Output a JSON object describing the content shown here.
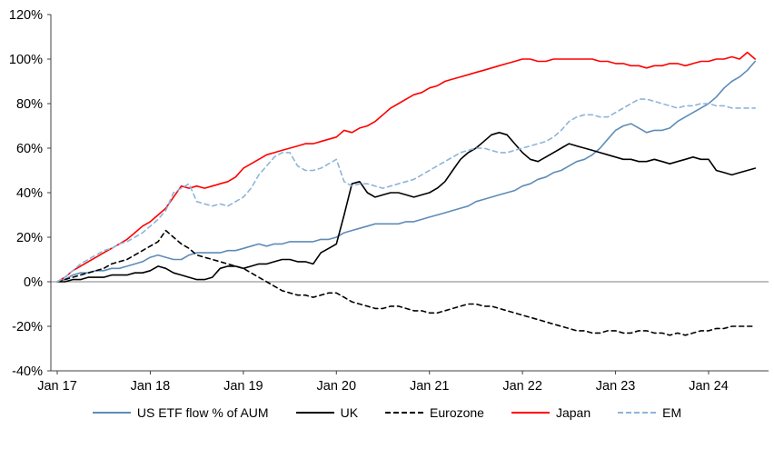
{
  "chart_data": {
    "type": "line",
    "title": "",
    "x_axis": {
      "tick_labels": [
        "Jan 17",
        "Jan 18",
        "Jan 19",
        "Jan 20",
        "Jan 21",
        "Jan 22",
        "Jan 23",
        "Jan 24"
      ],
      "tick_positions_months": [
        0,
        12,
        24,
        36,
        48,
        60,
        72,
        84
      ],
      "start": "Jan 2017",
      "resolution": "monthly"
    },
    "y_axis": {
      "tick_labels": [
        "120%",
        "100%",
        "80%",
        "60%",
        "40%",
        "20%",
        "0%",
        "-20%",
        "-40%"
      ],
      "tick_values": [
        120,
        100,
        80,
        60,
        40,
        20,
        0,
        -20,
        -40
      ],
      "range": [
        -40,
        120
      ],
      "unit": "%"
    },
    "grid": "zero-line-only",
    "legend_position": "bottom",
    "axis_color": "#404040",
    "zero_line_color": "#808080",
    "series": [
      {
        "name": "US ETF flow % of AUM",
        "color": "#5E8CB8",
        "style": "solid",
        "values": [
          0,
          1,
          3,
          4,
          4,
          5,
          5,
          6,
          6,
          7,
          8,
          9,
          11,
          12,
          11,
          10,
          10,
          12,
          13,
          13,
          13,
          13,
          14,
          14,
          15,
          16,
          17,
          16,
          17,
          17,
          18,
          18,
          18,
          18,
          19,
          19,
          20,
          22,
          23,
          24,
          25,
          26,
          26,
          26,
          26,
          27,
          27,
          28,
          29,
          30,
          31,
          32,
          33,
          34,
          36,
          37,
          38,
          39,
          40,
          41,
          43,
          44,
          46,
          47,
          49,
          50,
          52,
          54,
          55,
          57,
          60,
          64,
          68,
          70,
          71,
          69,
          67,
          68,
          68,
          69,
          72,
          74,
          76,
          78,
          80,
          83,
          87,
          90,
          92,
          95,
          99
        ]
      },
      {
        "name": "UK",
        "color": "#000000",
        "style": "solid",
        "values": [
          0,
          0,
          1,
          1,
          2,
          2,
          2,
          3,
          3,
          3,
          4,
          4,
          5,
          7,
          6,
          4,
          3,
          2,
          1,
          1,
          2,
          6,
          7,
          7,
          6,
          7,
          8,
          8,
          9,
          10,
          10,
          9,
          9,
          8,
          13,
          15,
          17,
          30,
          44,
          45,
          40,
          38,
          39,
          40,
          40,
          39,
          38,
          39,
          40,
          42,
          45,
          50,
          55,
          58,
          60,
          63,
          66,
          67,
          66,
          62,
          58,
          55,
          54,
          56,
          58,
          60,
          62,
          61,
          60,
          59,
          58,
          57,
          56,
          55,
          55,
          54,
          54,
          55,
          54,
          53,
          54,
          55,
          56,
          55,
          55,
          50,
          49,
          48,
          49,
          50,
          51
        ]
      },
      {
        "name": "Eurozone",
        "color": "#000000",
        "style": "dashed",
        "values": [
          0,
          1,
          2,
          3,
          4,
          5,
          6,
          8,
          9,
          10,
          12,
          14,
          16,
          18,
          23,
          20,
          17,
          15,
          12,
          11,
          10,
          9,
          8,
          7,
          6,
          4,
          2,
          0,
          -2,
          -4,
          -5,
          -6,
          -6,
          -7,
          -6,
          -5,
          -5,
          -7,
          -9,
          -10,
          -11,
          -12,
          -12,
          -11,
          -11,
          -12,
          -13,
          -13,
          -14,
          -14,
          -13,
          -12,
          -11,
          -10,
          -10,
          -11,
          -11,
          -12,
          -13,
          -14,
          -15,
          -16,
          -17,
          -18,
          -19,
          -20,
          -21,
          -22,
          -22,
          -23,
          -23,
          -22,
          -22,
          -23,
          -23,
          -22,
          -22,
          -23,
          -23,
          -24,
          -23,
          -24,
          -23,
          -22,
          -22,
          -21,
          -21,
          -20,
          -20,
          -20,
          -20
        ]
      },
      {
        "name": "Japan",
        "color": "#FF0000",
        "style": "solid",
        "values": [
          0,
          2,
          5,
          7,
          9,
          11,
          13,
          15,
          17,
          19,
          22,
          25,
          27,
          30,
          33,
          38,
          43,
          42,
          43,
          42,
          43,
          44,
          45,
          47,
          51,
          53,
          55,
          57,
          58,
          59,
          60,
          61,
          62,
          62,
          63,
          64,
          65,
          68,
          67,
          69,
          70,
          72,
          75,
          78,
          80,
          82,
          84,
          85,
          87,
          88,
          90,
          91,
          92,
          93,
          94,
          95,
          96,
          97,
          98,
          99,
          100,
          100,
          99,
          99,
          100,
          100,
          100,
          100,
          100,
          100,
          99,
          99,
          98,
          98,
          97,
          97,
          96,
          97,
          97,
          98,
          98,
          97,
          98,
          99,
          99,
          100,
          100,
          101,
          100,
          103,
          100
        ]
      },
      {
        "name": "EM",
        "color": "#8FB4D9",
        "style": "dashed",
        "values": [
          0,
          2,
          5,
          8,
          10,
          12,
          14,
          15,
          17,
          18,
          20,
          22,
          25,
          28,
          32,
          40,
          42,
          44,
          36,
          35,
          34,
          35,
          34,
          36,
          38,
          42,
          48,
          52,
          56,
          58,
          58,
          52,
          50,
          50,
          51,
          53,
          55,
          45,
          43,
          44,
          44,
          43,
          42,
          43,
          44,
          45,
          46,
          48,
          50,
          52,
          54,
          56,
          58,
          59,
          60,
          60,
          59,
          58,
          58,
          59,
          60,
          61,
          62,
          63,
          65,
          68,
          72,
          74,
          75,
          75,
          74,
          74,
          76,
          78,
          80,
          82,
          82,
          81,
          80,
          79,
          78,
          79,
          79,
          80,
          80,
          79,
          79,
          78,
          78,
          78,
          78
        ]
      }
    ]
  }
}
